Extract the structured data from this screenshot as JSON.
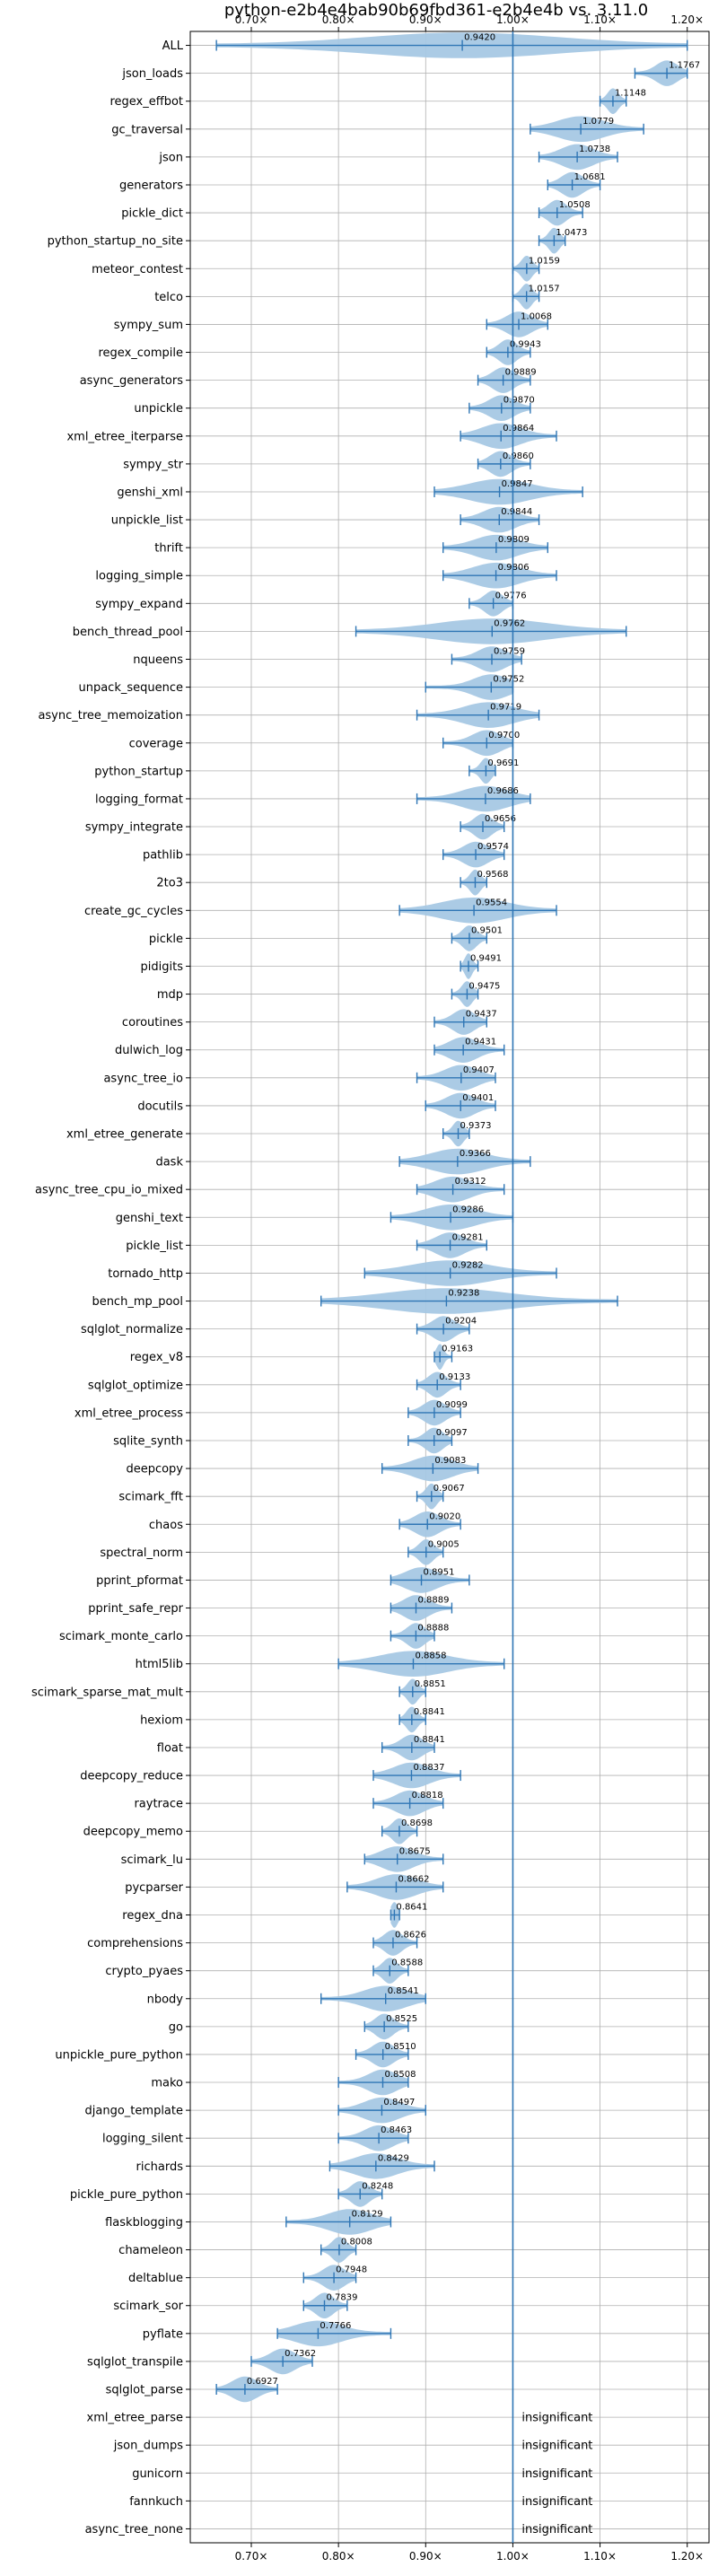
{
  "chart_data": {
    "type": "violin",
    "title": "python-e2b4e4bab90b69fbd361-e2b4e4b vs. 3.11.0",
    "xlim": [
      0.63,
      1.225
    ],
    "x_ticks": [
      0.7,
      0.8,
      0.9,
      1.0,
      1.1,
      1.2
    ],
    "x_tick_labels": [
      "0.70×",
      "0.80×",
      "0.90×",
      "1.00×",
      "1.10×",
      "1.20×"
    ],
    "reference_line": 1.0,
    "grid": true,
    "colors": {
      "violin": "#a6c8e4",
      "whisker": "#2f76b5",
      "reference": "#2f76b5"
    },
    "insignificant_label": "insignificant",
    "benchmarks": [
      {
        "name": "ALL",
        "median": 0.942,
        "min": 0.66,
        "max": 1.2,
        "label": "0.9420"
      },
      {
        "name": "json_loads",
        "median": 1.1767,
        "min": 1.14,
        "max": 1.2,
        "label": "1.1767"
      },
      {
        "name": "regex_effbot",
        "median": 1.1148,
        "min": 1.1,
        "max": 1.13,
        "label": "1.1148"
      },
      {
        "name": "gc_traversal",
        "median": 1.0779,
        "min": 1.02,
        "max": 1.15,
        "label": "1.0779"
      },
      {
        "name": "json",
        "median": 1.0738,
        "min": 1.03,
        "max": 1.12,
        "label": "1.0738"
      },
      {
        "name": "generators",
        "median": 1.0681,
        "min": 1.04,
        "max": 1.1,
        "label": "1.0681"
      },
      {
        "name": "pickle_dict",
        "median": 1.0508,
        "min": 1.03,
        "max": 1.08,
        "label": "1.0508"
      },
      {
        "name": "python_startup_no_site",
        "median": 1.0473,
        "min": 1.03,
        "max": 1.06,
        "label": "1.0473"
      },
      {
        "name": "meteor_contest",
        "median": 1.0159,
        "min": 1.0,
        "max": 1.03,
        "label": "1.0159"
      },
      {
        "name": "telco",
        "median": 1.0157,
        "min": 1.0,
        "max": 1.03,
        "label": "1.0157"
      },
      {
        "name": "sympy_sum",
        "median": 1.0068,
        "min": 0.97,
        "max": 1.04,
        "label": "1.0068"
      },
      {
        "name": "regex_compile",
        "median": 0.9943,
        "min": 0.97,
        "max": 1.02,
        "label": "0.9943"
      },
      {
        "name": "async_generators",
        "median": 0.9889,
        "min": 0.96,
        "max": 1.02,
        "label": "0.9889"
      },
      {
        "name": "unpickle",
        "median": 0.987,
        "min": 0.95,
        "max": 1.02,
        "label": "0.9870"
      },
      {
        "name": "xml_etree_iterparse",
        "median": 0.9864,
        "min": 0.94,
        "max": 1.05,
        "label": "0.9864"
      },
      {
        "name": "sympy_str",
        "median": 0.986,
        "min": 0.96,
        "max": 1.02,
        "label": "0.9860"
      },
      {
        "name": "genshi_xml",
        "median": 0.9847,
        "min": 0.91,
        "max": 1.08,
        "label": "0.9847"
      },
      {
        "name": "unpickle_list",
        "median": 0.9844,
        "min": 0.94,
        "max": 1.03,
        "label": "0.9844"
      },
      {
        "name": "thrift",
        "median": 0.9809,
        "min": 0.92,
        "max": 1.04,
        "label": "0.9809"
      },
      {
        "name": "logging_simple",
        "median": 0.9806,
        "min": 0.92,
        "max": 1.05,
        "label": "0.9806"
      },
      {
        "name": "sympy_expand",
        "median": 0.9776,
        "min": 0.95,
        "max": 1.0,
        "label": "0.9776"
      },
      {
        "name": "bench_thread_pool",
        "median": 0.9762,
        "min": 0.82,
        "max": 1.13,
        "label": "0.9762"
      },
      {
        "name": "nqueens",
        "median": 0.9759,
        "min": 0.93,
        "max": 1.01,
        "label": "0.9759"
      },
      {
        "name": "unpack_sequence",
        "median": 0.9752,
        "min": 0.9,
        "max": 1.0,
        "label": "0.9752"
      },
      {
        "name": "async_tree_memoization",
        "median": 0.9719,
        "min": 0.89,
        "max": 1.03,
        "label": "0.9719"
      },
      {
        "name": "coverage",
        "median": 0.97,
        "min": 0.92,
        "max": 1.0,
        "label": "0.9700"
      },
      {
        "name": "python_startup",
        "median": 0.9691,
        "min": 0.95,
        "max": 0.98,
        "label": "0.9691"
      },
      {
        "name": "logging_format",
        "median": 0.9686,
        "min": 0.89,
        "max": 1.02,
        "label": "0.9686"
      },
      {
        "name": "sympy_integrate",
        "median": 0.9656,
        "min": 0.94,
        "max": 0.99,
        "label": "0.9656"
      },
      {
        "name": "pathlib",
        "median": 0.9574,
        "min": 0.92,
        "max": 0.99,
        "label": "0.9574"
      },
      {
        "name": "2to3",
        "median": 0.9568,
        "min": 0.94,
        "max": 0.97,
        "label": "0.9568"
      },
      {
        "name": "create_gc_cycles",
        "median": 0.9554,
        "min": 0.87,
        "max": 1.05,
        "label": "0.9554"
      },
      {
        "name": "pickle",
        "median": 0.9501,
        "min": 0.93,
        "max": 0.97,
        "label": "0.9501"
      },
      {
        "name": "pidigits",
        "median": 0.9491,
        "min": 0.94,
        "max": 0.96,
        "label": "0.9491"
      },
      {
        "name": "mdp",
        "median": 0.9475,
        "min": 0.93,
        "max": 0.96,
        "label": "0.9475"
      },
      {
        "name": "coroutines",
        "median": 0.9437,
        "min": 0.91,
        "max": 0.97,
        "label": "0.9437"
      },
      {
        "name": "dulwich_log",
        "median": 0.9431,
        "min": 0.91,
        "max": 0.99,
        "label": "0.9431"
      },
      {
        "name": "async_tree_io",
        "median": 0.9407,
        "min": 0.89,
        "max": 0.98,
        "label": "0.9407"
      },
      {
        "name": "docutils",
        "median": 0.9401,
        "min": 0.9,
        "max": 0.98,
        "label": "0.9401"
      },
      {
        "name": "xml_etree_generate",
        "median": 0.9373,
        "min": 0.92,
        "max": 0.95,
        "label": "0.9373"
      },
      {
        "name": "dask",
        "median": 0.9366,
        "min": 0.87,
        "max": 1.02,
        "label": "0.9366"
      },
      {
        "name": "async_tree_cpu_io_mixed",
        "median": 0.9312,
        "min": 0.89,
        "max": 0.99,
        "label": "0.9312"
      },
      {
        "name": "genshi_text",
        "median": 0.9286,
        "min": 0.86,
        "max": 1.0,
        "label": "0.9286"
      },
      {
        "name": "pickle_list",
        "median": 0.9281,
        "min": 0.89,
        "max": 0.97,
        "label": "0.9281"
      },
      {
        "name": "tornado_http",
        "median": 0.9282,
        "min": 0.83,
        "max": 1.05,
        "label": "0.9282"
      },
      {
        "name": "bench_mp_pool",
        "median": 0.9238,
        "min": 0.78,
        "max": 1.12,
        "label": "0.9238"
      },
      {
        "name": "sqlglot_normalize",
        "median": 0.9204,
        "min": 0.89,
        "max": 0.95,
        "label": "0.9204"
      },
      {
        "name": "regex_v8",
        "median": 0.9163,
        "min": 0.91,
        "max": 0.93,
        "label": "0.9163"
      },
      {
        "name": "sqlglot_optimize",
        "median": 0.9133,
        "min": 0.89,
        "max": 0.94,
        "label": "0.9133"
      },
      {
        "name": "xml_etree_process",
        "median": 0.9099,
        "min": 0.88,
        "max": 0.94,
        "label": "0.9099"
      },
      {
        "name": "sqlite_synth",
        "median": 0.9097,
        "min": 0.88,
        "max": 0.93,
        "label": "0.9097"
      },
      {
        "name": "deepcopy",
        "median": 0.9083,
        "min": 0.85,
        "max": 0.96,
        "label": "0.9083"
      },
      {
        "name": "scimark_fft",
        "median": 0.9067,
        "min": 0.89,
        "max": 0.92,
        "label": "0.9067"
      },
      {
        "name": "chaos",
        "median": 0.902,
        "min": 0.87,
        "max": 0.94,
        "label": "0.9020"
      },
      {
        "name": "spectral_norm",
        "median": 0.9005,
        "min": 0.88,
        "max": 0.92,
        "label": "0.9005"
      },
      {
        "name": "pprint_pformat",
        "median": 0.8951,
        "min": 0.86,
        "max": 0.95,
        "label": "0.8951"
      },
      {
        "name": "pprint_safe_repr",
        "median": 0.8889,
        "min": 0.86,
        "max": 0.93,
        "label": "0.8889"
      },
      {
        "name": "scimark_monte_carlo",
        "median": 0.8888,
        "min": 0.86,
        "max": 0.91,
        "label": "0.8888"
      },
      {
        "name": "html5lib",
        "median": 0.8858,
        "min": 0.8,
        "max": 0.99,
        "label": "0.8858"
      },
      {
        "name": "scimark_sparse_mat_mult",
        "median": 0.8851,
        "min": 0.87,
        "max": 0.9,
        "label": "0.8851"
      },
      {
        "name": "hexiom",
        "median": 0.8841,
        "min": 0.87,
        "max": 0.9,
        "label": "0.8841"
      },
      {
        "name": "float",
        "median": 0.8841,
        "min": 0.85,
        "max": 0.91,
        "label": "0.8841"
      },
      {
        "name": "deepcopy_reduce",
        "median": 0.8837,
        "min": 0.84,
        "max": 0.94,
        "label": "0.8837"
      },
      {
        "name": "raytrace",
        "median": 0.8818,
        "min": 0.84,
        "max": 0.92,
        "label": "0.8818"
      },
      {
        "name": "deepcopy_memo",
        "median": 0.8698,
        "min": 0.85,
        "max": 0.89,
        "label": "0.8698"
      },
      {
        "name": "scimark_lu",
        "median": 0.8675,
        "min": 0.83,
        "max": 0.92,
        "label": "0.8675"
      },
      {
        "name": "pycparser",
        "median": 0.8662,
        "min": 0.81,
        "max": 0.92,
        "label": "0.8662"
      },
      {
        "name": "regex_dna",
        "median": 0.8641,
        "min": 0.86,
        "max": 0.87,
        "label": "0.8641"
      },
      {
        "name": "comprehensions",
        "median": 0.8626,
        "min": 0.84,
        "max": 0.89,
        "label": "0.8626"
      },
      {
        "name": "crypto_pyaes",
        "median": 0.8588,
        "min": 0.84,
        "max": 0.88,
        "label": "0.8588"
      },
      {
        "name": "nbody",
        "median": 0.8541,
        "min": 0.78,
        "max": 0.9,
        "label": "0.8541"
      },
      {
        "name": "go",
        "median": 0.8525,
        "min": 0.83,
        "max": 0.88,
        "label": "0.8525"
      },
      {
        "name": "unpickle_pure_python",
        "median": 0.851,
        "min": 0.82,
        "max": 0.88,
        "label": "0.8510"
      },
      {
        "name": "mako",
        "median": 0.8508,
        "min": 0.8,
        "max": 0.88,
        "label": "0.8508"
      },
      {
        "name": "django_template",
        "median": 0.8497,
        "min": 0.8,
        "max": 0.9,
        "label": "0.8497"
      },
      {
        "name": "logging_silent",
        "median": 0.8463,
        "min": 0.8,
        "max": 0.88,
        "label": "0.8463"
      },
      {
        "name": "richards",
        "median": 0.8429,
        "min": 0.79,
        "max": 0.91,
        "label": "0.8429"
      },
      {
        "name": "pickle_pure_python",
        "median": 0.8248,
        "min": 0.8,
        "max": 0.85,
        "label": "0.8248"
      },
      {
        "name": "flaskblogging",
        "median": 0.8129,
        "min": 0.74,
        "max": 0.86,
        "label": "0.8129"
      },
      {
        "name": "chameleon",
        "median": 0.8008,
        "min": 0.78,
        "max": 0.82,
        "label": "0.8008"
      },
      {
        "name": "deltablue",
        "median": 0.7948,
        "min": 0.76,
        "max": 0.82,
        "label": "0.7948"
      },
      {
        "name": "scimark_sor",
        "median": 0.7839,
        "min": 0.76,
        "max": 0.81,
        "label": "0.7839"
      },
      {
        "name": "pyflate",
        "median": 0.7766,
        "min": 0.73,
        "max": 0.86,
        "label": "0.7766"
      },
      {
        "name": "sqlglot_transpile",
        "median": 0.7362,
        "min": 0.7,
        "max": 0.77,
        "label": "0.7362"
      },
      {
        "name": "sqlglot_parse",
        "median": 0.6927,
        "min": 0.66,
        "max": 0.73,
        "label": "0.6927"
      },
      {
        "name": "xml_etree_parse",
        "insignificant": true
      },
      {
        "name": "json_dumps",
        "insignificant": true
      },
      {
        "name": "gunicorn",
        "insignificant": true
      },
      {
        "name": "fannkuch",
        "insignificant": true
      },
      {
        "name": "async_tree_none",
        "insignificant": true
      }
    ]
  }
}
